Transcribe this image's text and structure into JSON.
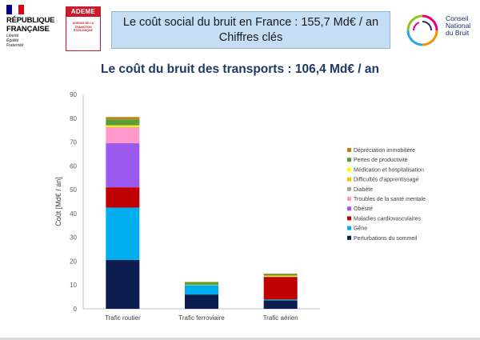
{
  "logos": {
    "republique": {
      "line1": "RÉPUBLIQUE",
      "line2": "FRANÇAISE",
      "motto": [
        "Liberté",
        "Égalité",
        "Fraternité"
      ],
      "flag_colors": [
        "#000091",
        "#ffffff",
        "#e1000f"
      ]
    },
    "ademe": {
      "name": "ADEME",
      "tagline": "AGENCE DE LA TRANSITION ÉCOLOGIQUE",
      "color": "#cc1a2b"
    },
    "cnb": {
      "lines": [
        "Conseil",
        "National",
        "du Bruit"
      ]
    }
  },
  "header": {
    "title_line1": "Le coût social du bruit en France : 155,7 Md€ / an",
    "title_line2": "Chiffres clés"
  },
  "subtitle": "Le coût du bruit des transports : 106,4 Md€ / an",
  "chart_data": {
    "type": "bar",
    "stacked": true,
    "categories": [
      "Trafic routier",
      "Trafic ferroviaire",
      "Trafic aérien"
    ],
    "ylabel": "Coût [Md€ / an]",
    "ylim": [
      0,
      90
    ],
    "yticks": [
      0,
      10,
      20,
      30,
      40,
      50,
      60,
      70,
      80,
      90
    ],
    "grid": false,
    "legend_position": "right",
    "series": [
      {
        "name": "Perturbations du sommeil",
        "color": "#0b1c4f",
        "values": [
          20.5,
          6.0,
          3.5
        ]
      },
      {
        "name": "Gêne",
        "color": "#00aeef",
        "values": [
          22.0,
          4.0,
          0.4
        ]
      },
      {
        "name": "Maladies cardiovasculaires",
        "color": "#c00000",
        "values": [
          8.5,
          0.0,
          9.5
        ]
      },
      {
        "name": "Obésité",
        "color": "#9b59f0",
        "values": [
          18.5,
          0.0,
          0.0
        ]
      },
      {
        "name": "Troubles de la santé mentale",
        "color": "#ff99cc",
        "values": [
          6.5,
          0.0,
          0.0
        ]
      },
      {
        "name": "Diabète",
        "color": "#a6a6a6",
        "values": [
          0.2,
          0.0,
          0.1
        ]
      },
      {
        "name": "Difficultés d'apprentissage",
        "color": "#ffc000",
        "values": [
          0.3,
          0.0,
          0.2
        ]
      },
      {
        "name": "Médication et hospitalisation",
        "color": "#ffff00",
        "values": [
          0.5,
          0.1,
          0.2
        ]
      },
      {
        "name": "Pertes de productivité",
        "color": "#5b9b3b",
        "values": [
          2.5,
          1.0,
          0.6
        ]
      },
      {
        "name": "Dépréciation immobilière",
        "color": "#b8860b",
        "values": [
          1.0,
          0.2,
          0.3
        ]
      }
    ]
  }
}
